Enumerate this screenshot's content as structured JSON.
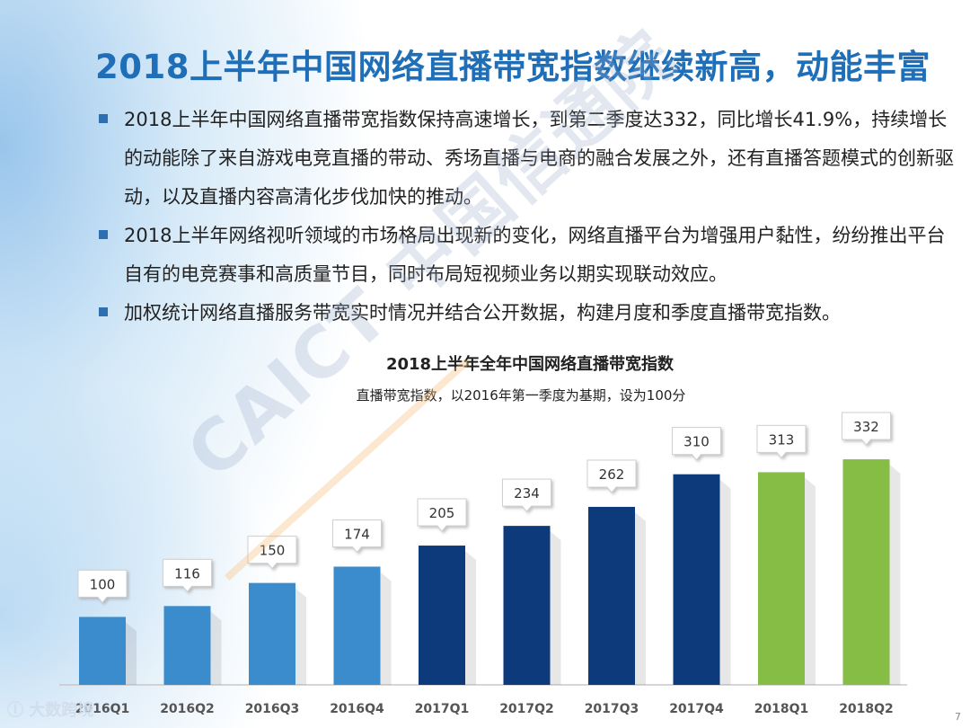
{
  "slide": {
    "title": "2018上半年中国网络直播带宽指数继续新高，动能丰富",
    "bullets": [
      "2018上半年中国网络直播带宽指数保持高速增长，到第二季度达332，同比增长41.9%，持续增长的动能除了来自游戏电竞直播的带动、秀场直播与电商的融合发展之外，还有直播答题模式的创新驱动，以及直播内容高清化步伐加快的推动。",
      "2018上半年网络视听领域的市场格局出现新的变化，网络直播平台为增强用户黏性，纷纷推出平台自有的电竞赛事和高质量节目，同时布局短视频业务以期实现联动效应。",
      "加权统计网络直播服务带宽实时情况并结合公开数据，构建月度和季度直播带宽指数。"
    ],
    "watermark": "CAICT 中国信通院",
    "logo": "大数跨境",
    "page_number": "7",
    "colors": {
      "title": "#1f6fb8",
      "bullet_square": "#2d6fb0"
    }
  },
  "chart_data": {
    "type": "bar",
    "title": "2018上半年全年中国网络直播带宽指数",
    "subtitle": "直播带宽指数，以2016年第一季度为基期，设为100分",
    "categories": [
      "2016Q1",
      "2016Q2",
      "2016Q3",
      "2016Q4",
      "2017Q1",
      "2017Q2",
      "2017Q3",
      "2017Q4",
      "2018Q1",
      "2018Q2"
    ],
    "values": [
      100,
      116,
      150,
      174,
      205,
      234,
      262,
      310,
      313,
      332
    ],
    "bar_colors": [
      "#3a8ccc",
      "#3a8ccc",
      "#3a8ccc",
      "#3a8ccc",
      "#0d3a7a",
      "#0d3a7a",
      "#0d3a7a",
      "#0d3a7a",
      "#86bd45",
      "#86bd45"
    ],
    "ylim": [
      0,
      340
    ],
    "xlabel": "",
    "ylabel": "",
    "grid": false
  }
}
